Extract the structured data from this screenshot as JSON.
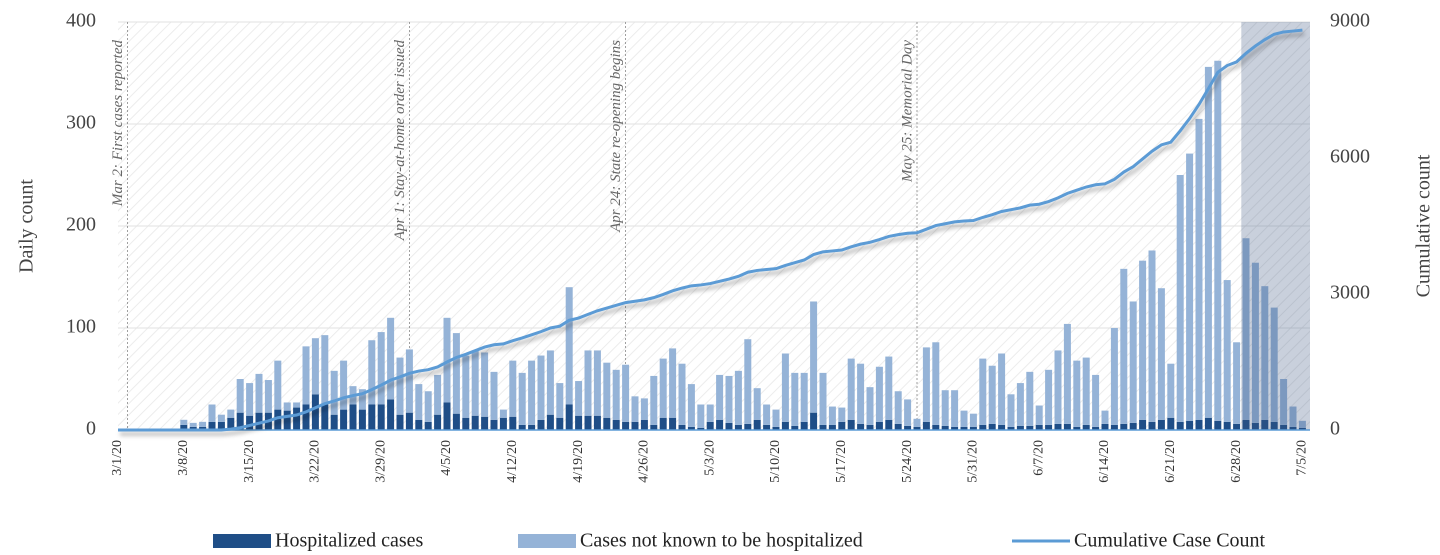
{
  "chart_data": {
    "type": "bar",
    "stacked": true,
    "ylabel": "Daily count",
    "y2label": "Cumulative count",
    "ylim": [
      0,
      400
    ],
    "yticks": [
      0,
      100,
      200,
      300,
      400
    ],
    "y2lim": [
      0,
      9000
    ],
    "y2ticks": [
      0,
      3000,
      6000,
      9000
    ],
    "grid": true,
    "shaded_start": "6/28/20",
    "annotations": [
      "Mar 2: First cases reported",
      "Apr 1: Stay-at-home order issued",
      "Apr 24: State re-opening begins",
      "May 25: Memorial Day"
    ],
    "categories": [
      "3/1/20",
      null,
      null,
      null,
      null,
      null,
      null,
      "3/8/20",
      null,
      null,
      null,
      null,
      null,
      null,
      "3/15/20",
      null,
      null,
      null,
      null,
      null,
      null,
      "3/22/20",
      null,
      null,
      null,
      null,
      null,
      null,
      "3/29/20",
      null,
      null,
      null,
      null,
      null,
      null,
      "4/5/20",
      null,
      null,
      null,
      null,
      null,
      null,
      "4/12/20",
      null,
      null,
      null,
      null,
      null,
      null,
      "4/19/20",
      null,
      null,
      null,
      null,
      null,
      null,
      "4/26/20",
      null,
      null,
      null,
      null,
      null,
      null,
      "5/3/20",
      null,
      null,
      null,
      null,
      null,
      null,
      "5/10/20",
      null,
      null,
      null,
      null,
      null,
      null,
      "5/17/20",
      null,
      null,
      null,
      null,
      null,
      null,
      "5/24/20",
      null,
      null,
      null,
      null,
      null,
      null,
      "5/31/20",
      null,
      null,
      null,
      null,
      null,
      null,
      "6/7/20",
      null,
      null,
      null,
      null,
      null,
      null,
      "6/14/20",
      null,
      null,
      null,
      null,
      null,
      null,
      "6/21/20",
      null,
      null,
      null,
      null,
      null,
      null,
      "6/28/20",
      null,
      null,
      null,
      null,
      null,
      null,
      "7/5/20"
    ],
    "series": [
      {
        "name": "Hospitalized cases",
        "type": "bar",
        "color": "#1f4e87",
        "values": [
          0,
          0,
          0,
          0,
          0,
          0,
          0,
          5,
          3,
          3,
          8,
          8,
          12,
          17,
          14,
          17,
          17,
          20,
          19,
          22,
          25,
          35,
          25,
          15,
          20,
          25,
          20,
          25,
          25,
          30,
          15,
          17,
          10,
          8,
          15,
          27,
          16,
          12,
          14,
          13,
          10,
          12,
          13,
          5,
          5,
          10,
          15,
          12,
          25,
          14,
          14,
          14,
          12,
          10,
          8,
          8,
          10,
          5,
          12,
          12,
          5,
          3,
          2,
          8,
          10,
          7,
          5,
          6,
          10,
          5,
          3,
          8,
          4,
          8,
          17,
          5,
          5,
          8,
          10,
          6,
          5,
          8,
          10,
          6,
          4,
          3,
          8,
          5,
          4,
          3,
          3,
          3,
          5,
          6,
          5,
          3,
          4,
          4,
          5,
          5,
          6,
          6,
          3,
          5,
          3,
          6,
          5,
          6,
          7,
          10,
          8,
          10,
          12,
          8,
          9,
          10,
          12,
          9,
          8,
          6,
          10,
          7,
          10,
          8,
          5,
          3,
          2
        ]
      },
      {
        "name": "Cases not known to be hospitalized",
        "type": "bar",
        "color": "#95b3d7",
        "values": [
          0,
          0,
          0,
          0,
          0,
          0,
          0,
          5,
          4,
          5,
          17,
          7,
          8,
          33,
          32,
          38,
          32,
          48,
          8,
          5,
          57,
          55,
          68,
          43,
          48,
          18,
          20,
          63,
          71,
          80,
          56,
          62,
          35,
          30,
          39,
          83,
          79,
          61,
          64,
          63,
          47,
          8,
          55,
          51,
          63,
          63,
          63,
          34,
          115,
          34,
          64,
          64,
          54,
          49,
          56,
          25,
          21,
          48,
          58,
          68,
          60,
          42,
          23,
          17,
          44,
          46,
          53,
          83,
          31,
          20,
          17,
          67,
          52,
          48,
          109,
          51,
          18,
          14,
          60,
          59,
          37,
          54,
          62,
          32,
          26,
          8,
          73,
          81,
          35,
          36,
          16,
          13,
          65,
          57,
          70,
          32,
          42,
          53,
          19,
          54,
          72,
          98,
          65,
          66,
          51,
          13,
          95,
          152,
          119,
          156,
          168,
          129,
          53,
          242,
          262,
          295,
          344,
          353,
          139,
          80,
          178,
          157,
          131,
          112,
          45,
          20,
          7
        ]
      },
      {
        "name": "Cumulative Case Count",
        "type": "line",
        "axis": "y2",
        "color": "#5b9bd5",
        "values": [
          0,
          0,
          0,
          0,
          0,
          0,
          0,
          0,
          0,
          0,
          0,
          0,
          20,
          50,
          100,
          150,
          200,
          270,
          300,
          330,
          400,
          490,
          580,
          640,
          710,
          760,
          800,
          890,
          990,
          1100,
          1170,
          1250,
          1300,
          1330,
          1390,
          1500,
          1600,
          1670,
          1750,
          1830,
          1880,
          1900,
          1970,
          2030,
          2100,
          2170,
          2250,
          2290,
          2420,
          2470,
          2550,
          2630,
          2690,
          2750,
          2810,
          2840,
          2870,
          2920,
          2990,
          3070,
          3130,
          3180,
          3200,
          3230,
          3280,
          3330,
          3390,
          3480,
          3520,
          3540,
          3560,
          3630,
          3690,
          3750,
          3870,
          3930,
          3950,
          3970,
          4040,
          4100,
          4140,
          4200,
          4270,
          4310,
          4340,
          4350,
          4430,
          4510,
          4550,
          4590,
          4610,
          4620,
          4690,
          4750,
          4820,
          4860,
          4900,
          4960,
          4980,
          5040,
          5120,
          5220,
          5290,
          5360,
          5410,
          5430,
          5530,
          5690,
          5810,
          5980,
          6150,
          6290,
          6350,
          6600,
          6870,
          7180,
          7530,
          7890,
          8040,
          8120,
          8310,
          8470,
          8610,
          8730,
          8780,
          8800,
          8820
        ]
      }
    ]
  }
}
